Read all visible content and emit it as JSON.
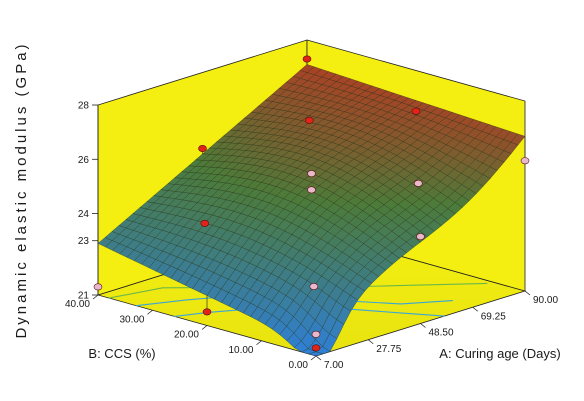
{
  "chart_data": {
    "type": "surface",
    "title": "",
    "colors": {
      "background": "#f4ef10",
      "surface_low": "#2f7fd6",
      "surface_mid": "#4c7b3a",
      "surface_high": "#d02a1c",
      "point_above": "#e2231a",
      "point_below": "#e8b8cc",
      "contour": [
        "#3aa6d8",
        "#6ab84a",
        "#e07a2a"
      ]
    },
    "z_axis": {
      "label": "Dynamic elastic modulus (GPa)",
      "ticks": [
        "21",
        "23",
        "24",
        "26",
        "28"
      ],
      "range": [
        21,
        28
      ]
    },
    "a_axis": {
      "label": "A: Curing age (Days)",
      "ticks": [
        "7.00",
        "27.75",
        "48.50",
        "69.25",
        "90.00"
      ],
      "range": [
        7,
        90
      ]
    },
    "b_axis": {
      "label": "B: CCS (%)",
      "ticks": [
        "0.00",
        "10.00",
        "20.00",
        "30.00",
        "40.00"
      ],
      "range": [
        0,
        40
      ]
    },
    "points": [
      {
        "a": 7,
        "b": 40,
        "z": 21.3,
        "above": false
      },
      {
        "a": 7,
        "b": 20,
        "z": 21.5,
        "above": true
      },
      {
        "a": 7,
        "b": 0,
        "z": 21.8,
        "above": false
      },
      {
        "a": 48.5,
        "b": 40,
        "z": 25.2,
        "above": true
      },
      {
        "a": 48.5,
        "b": 20,
        "z": 24.8,
        "above": false
      },
      {
        "a": 48.5,
        "b": 0,
        "z": 24.2,
        "above": false
      },
      {
        "a": 90,
        "b": 40,
        "z": 27.3,
        "above": true
      },
      {
        "a": 90,
        "b": 20,
        "z": 26.5,
        "above": true
      },
      {
        "a": 90,
        "b": 0,
        "z": 25.8,
        "above": false
      },
      {
        "a": 48.5,
        "b": 20,
        "z": 25.4,
        "above": false
      },
      {
        "a": 27.75,
        "b": 30,
        "z": 23.6,
        "above": true
      },
      {
        "a": 69.25,
        "b": 10,
        "z": 25.0,
        "above": false
      },
      {
        "a": 27.75,
        "b": 10,
        "z": 22.4,
        "above": false
      },
      {
        "a": 69.25,
        "b": 30,
        "z": 26.2,
        "above": true
      },
      {
        "a": 7,
        "b": 0,
        "z": 21.3,
        "above": true
      }
    ]
  }
}
